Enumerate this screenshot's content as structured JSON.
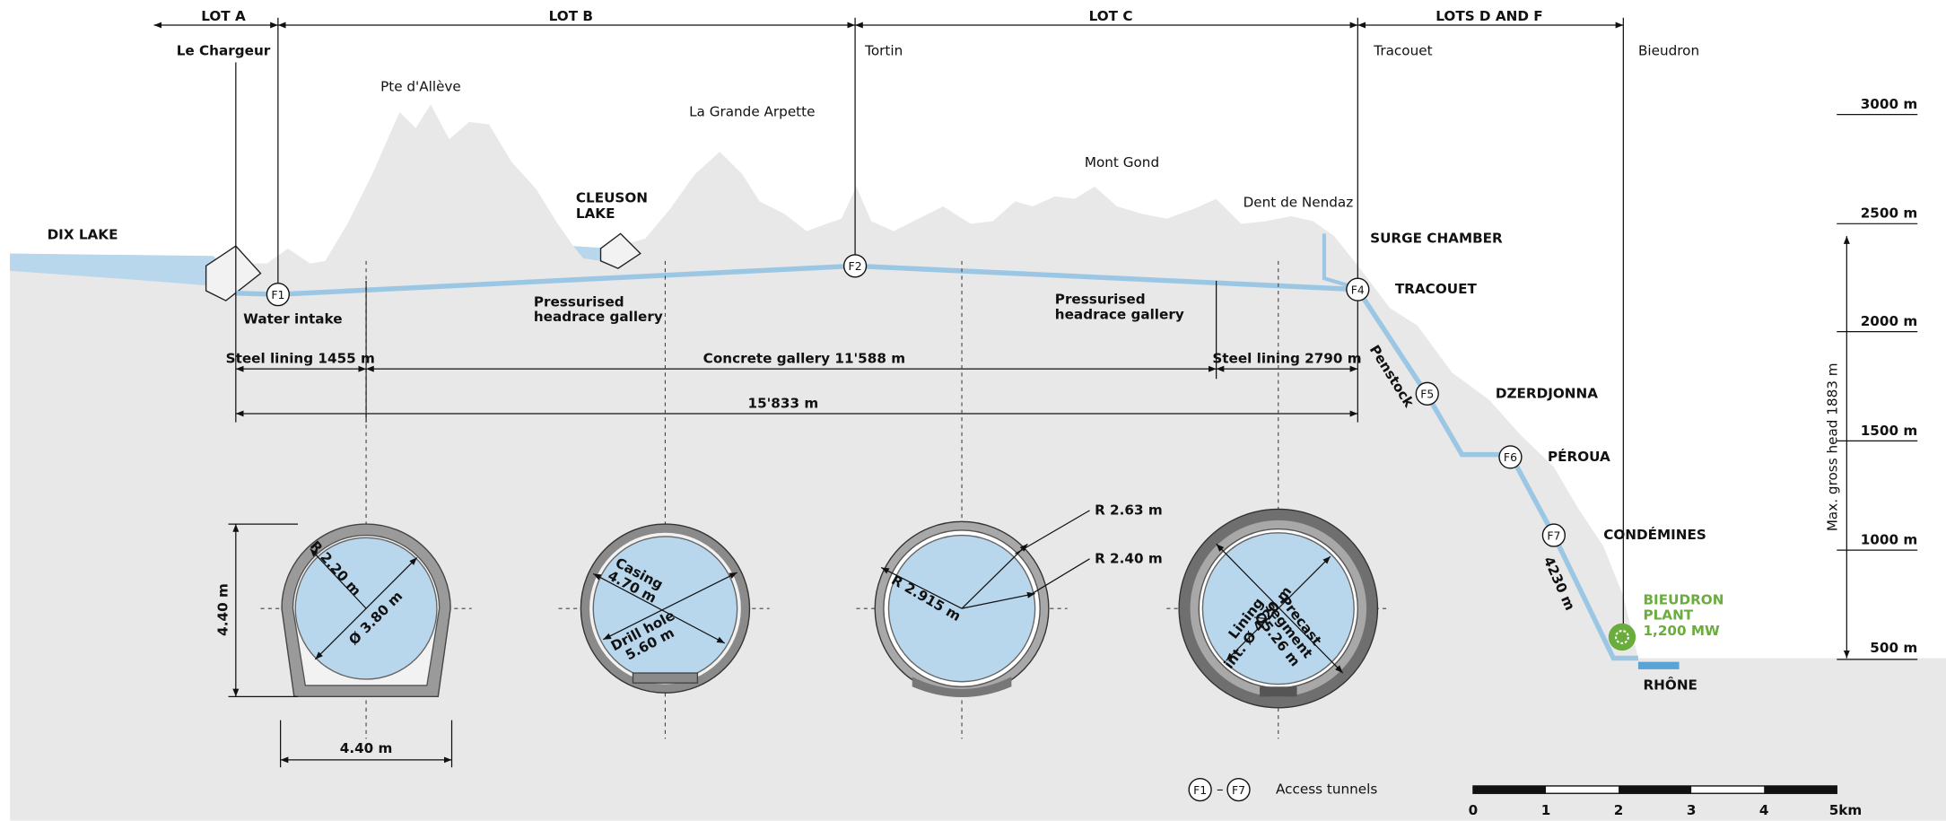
{
  "lots": [
    "LOT A",
    "LOT B",
    "LOT C",
    "LOTS D AND F"
  ],
  "places": [
    "Le Chargeur",
    "Tortin",
    "Tracouet",
    "Bieudron"
  ],
  "peaks": [
    "Pte d'Allève",
    "La Grande Arpette",
    "Mont Gond",
    "Dent de Nendaz"
  ],
  "features": {
    "dix_lake": "DIX LAKE",
    "cleuson_lake": [
      "CLEUSON",
      "LAKE"
    ],
    "surge_chamber": "SURGE CHAMBER",
    "tracouet": "TRACOUET",
    "dzerdjonna": "DZERDJONNA",
    "peroua": "PÉROUA",
    "condemines": "CONDÉMINES",
    "plant": [
      "BIEUDRON",
      "PLANT",
      "1,200 MW"
    ],
    "rhone": "RHÔNE"
  },
  "access_tunnels": [
    "F1",
    "F2",
    "F4",
    "F5",
    "F6",
    "F7"
  ],
  "gallery": {
    "water_intake": "Water intake",
    "headrace_1": [
      "Pressurised",
      "headrace gallery"
    ],
    "headrace_2": [
      "Pressurised",
      "headrace gallery"
    ],
    "steel_lining_1": "Steel lining 1455 m",
    "concrete": "Concrete gallery 11'588 m",
    "steel_lining_2": "Steel lining 2790 m",
    "total": "15'833 m",
    "penstock": "Penstock",
    "penstock_length": "4230 m"
  },
  "altitude": {
    "ticks": [
      "3000 m",
      "2500 m",
      "2000 m",
      "1500 m",
      "1000 m",
      "500 m"
    ],
    "max_head": "Max. gross head 1883 m"
  },
  "sections": [
    {
      "height": "4.40 m",
      "width": "4.40 m",
      "radius": "R 2.20 m",
      "diameter": "Ø 3.80 m"
    },
    {
      "casing": [
        "Casing",
        "4.70 m"
      ],
      "drill_hole": [
        "Drill hole",
        "5.60 m"
      ]
    },
    {
      "outer_radius": "R 2.63 m",
      "inner_radius": "R 2.40 m",
      "excavation_radius": "R 2.915 m"
    },
    {
      "lining": [
        "Lining",
        "int. Ø 4.20 m"
      ],
      "segment": [
        "Precast",
        "segment",
        "Ø5.26 m"
      ]
    }
  ],
  "legend": {
    "from": "F1",
    "dash": "–",
    "to": "F7",
    "label": "Access tunnels"
  },
  "scale_bar": [
    "0",
    "1",
    "2",
    "3",
    "4",
    "5km"
  ]
}
